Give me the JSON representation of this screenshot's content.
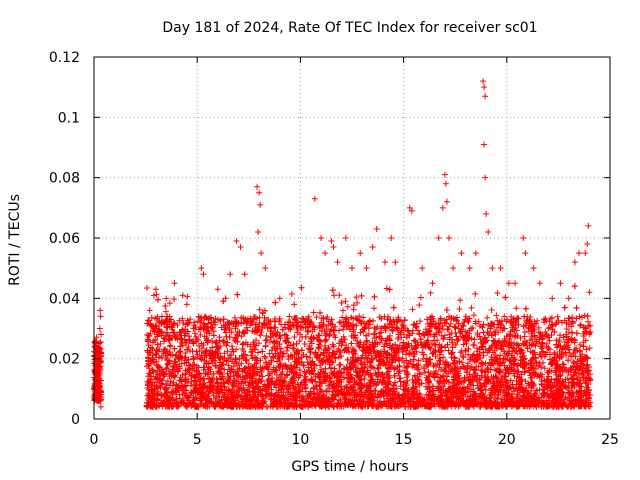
{
  "chart_data": {
    "type": "scatter",
    "title": "Day 181 of 2024, Rate Of TEC Index for receiver sc01",
    "xlabel": "GPS time / hours",
    "ylabel": "ROTI / TECUs",
    "xlim": [
      0,
      25
    ],
    "ylim": [
      0,
      0.12
    ],
    "xticks": [
      0,
      5,
      10,
      15,
      20,
      25
    ],
    "yticks": [
      0,
      0.02,
      0.04,
      0.06,
      0.08,
      0.1,
      0.12
    ],
    "grid": true,
    "marker": "plus",
    "color": "#ff0000",
    "series": [
      {
        "name": "",
        "points": [
          [
            0.05,
            0.024
          ],
          [
            0.08,
            0.021
          ],
          [
            0.1,
            0.018
          ],
          [
            0.12,
            0.015
          ],
          [
            0.15,
            0.012
          ],
          [
            0.18,
            0.01
          ],
          [
            0.2,
            0.009
          ],
          [
            0.22,
            0.013
          ],
          [
            0.25,
            0.017
          ],
          [
            0.28,
            0.03
          ],
          [
            0.3,
            0.036
          ],
          [
            0.32,
            0.034
          ],
          [
            0.34,
            0.028
          ],
          [
            0.3,
            0.008
          ],
          [
            0.33,
            0.004
          ],
          [
            0.1,
            0.016
          ],
          [
            0.2,
            0.014
          ],
          [
            0.25,
            0.011
          ],
          [
            0.05,
            0.013
          ],
          [
            0.15,
            0.019
          ],
          [
            2.7,
            0.036
          ],
          [
            2.9,
            0.041
          ],
          [
            3.0,
            0.043
          ],
          [
            3.5,
            0.04
          ],
          [
            3.9,
            0.045
          ],
          [
            4.3,
            0.041
          ],
          [
            4.5,
            0.038
          ],
          [
            5.2,
            0.05
          ],
          [
            5.3,
            0.048
          ],
          [
            6.0,
            0.043
          ],
          [
            6.6,
            0.048
          ],
          [
            6.9,
            0.059
          ],
          [
            7.1,
            0.057
          ],
          [
            7.3,
            0.048
          ],
          [
            7.9,
            0.077
          ],
          [
            8.0,
            0.075
          ],
          [
            8.05,
            0.071
          ],
          [
            7.95,
            0.062
          ],
          [
            8.1,
            0.055
          ],
          [
            8.3,
            0.05
          ],
          [
            9.0,
            0.04
          ],
          [
            9.7,
            0.038
          ],
          [
            10.2,
            0.032
          ],
          [
            10.7,
            0.073
          ],
          [
            11.0,
            0.06
          ],
          [
            11.2,
            0.055
          ],
          [
            11.5,
            0.059
          ],
          [
            11.6,
            0.057
          ],
          [
            11.8,
            0.052
          ],
          [
            12.2,
            0.06
          ],
          [
            12.5,
            0.05
          ],
          [
            12.9,
            0.055
          ],
          [
            13.2,
            0.05
          ],
          [
            13.5,
            0.057
          ],
          [
            13.7,
            0.063
          ],
          [
            14.1,
            0.052
          ],
          [
            14.4,
            0.06
          ],
          [
            14.6,
            0.052
          ],
          [
            15.3,
            0.07
          ],
          [
            15.4,
            0.069
          ],
          [
            15.9,
            0.05
          ],
          [
            16.4,
            0.045
          ],
          [
            16.7,
            0.06
          ],
          [
            16.9,
            0.07
          ],
          [
            17.0,
            0.081
          ],
          [
            17.05,
            0.078
          ],
          [
            17.1,
            0.072
          ],
          [
            17.2,
            0.06
          ],
          [
            17.4,
            0.05
          ],
          [
            17.8,
            0.055
          ],
          [
            18.2,
            0.05
          ],
          [
            18.5,
            0.055
          ],
          [
            18.85,
            0.112
          ],
          [
            18.9,
            0.11
          ],
          [
            18.95,
            0.107
          ],
          [
            18.9,
            0.091
          ],
          [
            18.95,
            0.08
          ],
          [
            19.0,
            0.068
          ],
          [
            19.1,
            0.062
          ],
          [
            19.3,
            0.05
          ],
          [
            19.7,
            0.05
          ],
          [
            20.1,
            0.045
          ],
          [
            20.4,
            0.045
          ],
          [
            20.8,
            0.06
          ],
          [
            20.9,
            0.055
          ],
          [
            21.3,
            0.05
          ],
          [
            21.6,
            0.045
          ],
          [
            22.2,
            0.04
          ],
          [
            22.6,
            0.045
          ],
          [
            23.0,
            0.04
          ],
          [
            23.3,
            0.052
          ],
          [
            23.5,
            0.055
          ],
          [
            23.8,
            0.055
          ],
          [
            23.95,
            0.064
          ],
          [
            23.9,
            0.058
          ],
          [
            24.0,
            0.042
          ]
        ]
      }
    ]
  }
}
